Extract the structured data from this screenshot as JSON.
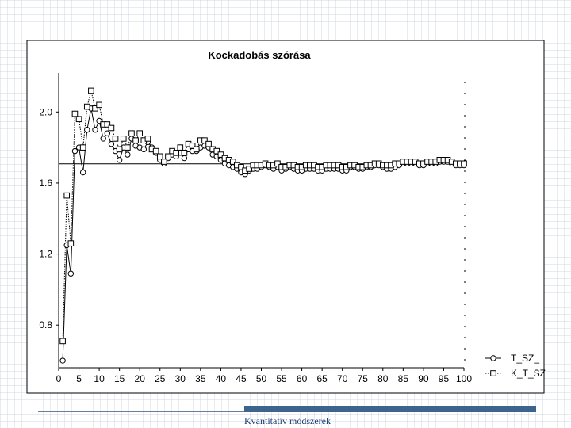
{
  "slide": {
    "footer_text": "Kvantitatív módszerek",
    "accent_color": "#3c648c"
  },
  "chart_data": {
    "type": "line",
    "title": "Kockadobás szórása",
    "xlabel": "",
    "ylabel": "",
    "xlim": [
      0,
      100
    ],
    "ylim": [
      0.56,
      2.22
    ],
    "x_ticks": [
      0,
      5,
      10,
      15,
      20,
      25,
      30,
      35,
      40,
      45,
      50,
      55,
      60,
      65,
      70,
      75,
      80,
      85,
      90,
      95,
      100
    ],
    "y_ticks": [
      0.8,
      1.2,
      1.6,
      2.0
    ],
    "y_tick_labels": [
      "0.8",
      "1.2",
      "1.6",
      "2.0"
    ],
    "reference_line": {
      "y": 1.708
    },
    "legend": {
      "position": "bottom-right",
      "frame": false
    },
    "grid": false,
    "x": [
      1,
      2,
      3,
      4,
      5,
      6,
      7,
      8,
      9,
      10,
      11,
      12,
      13,
      14,
      15,
      16,
      17,
      18,
      19,
      20,
      21,
      22,
      23,
      24,
      25,
      26,
      27,
      28,
      29,
      30,
      31,
      32,
      33,
      34,
      35,
      36,
      37,
      38,
      39,
      40,
      41,
      42,
      43,
      44,
      45,
      46,
      47,
      48,
      49,
      50,
      51,
      52,
      53,
      54,
      55,
      56,
      57,
      58,
      59,
      60,
      61,
      62,
      63,
      64,
      65,
      66,
      67,
      68,
      69,
      70,
      71,
      72,
      73,
      74,
      75,
      76,
      77,
      78,
      79,
      80,
      81,
      82,
      83,
      84,
      85,
      86,
      87,
      88,
      89,
      90,
      91,
      92,
      93,
      94,
      95,
      96,
      97,
      98,
      99,
      100
    ],
    "series": [
      {
        "name": "T_SZ_",
        "marker": "circle",
        "line_style": "solid",
        "values": [
          0.6,
          1.25,
          1.09,
          1.78,
          1.8,
          1.66,
          1.9,
          2.02,
          1.9,
          1.95,
          1.85,
          1.88,
          1.82,
          1.78,
          1.73,
          1.8,
          1.76,
          1.85,
          1.81,
          1.8,
          1.79,
          1.83,
          1.8,
          1.77,
          1.73,
          1.71,
          1.74,
          1.76,
          1.75,
          1.77,
          1.74,
          1.79,
          1.78,
          1.78,
          1.8,
          1.81,
          1.8,
          1.76,
          1.75,
          1.73,
          1.71,
          1.7,
          1.69,
          1.68,
          1.66,
          1.65,
          1.67,
          1.68,
          1.68,
          1.69,
          1.7,
          1.69,
          1.68,
          1.69,
          1.67,
          1.68,
          1.69,
          1.68,
          1.67,
          1.67,
          1.68,
          1.68,
          1.68,
          1.67,
          1.67,
          1.68,
          1.68,
          1.68,
          1.68,
          1.67,
          1.67,
          1.69,
          1.69,
          1.68,
          1.68,
          1.69,
          1.69,
          1.7,
          1.7,
          1.69,
          1.68,
          1.68,
          1.69,
          1.7,
          1.71,
          1.71,
          1.71,
          1.71,
          1.7,
          1.7,
          1.71,
          1.71,
          1.71,
          1.72,
          1.72,
          1.72,
          1.71,
          1.7,
          1.7,
          1.7
        ]
      },
      {
        "name": "K_T_SZ",
        "marker": "square",
        "line_style": "dotted",
        "values": [
          0.71,
          1.53,
          1.26,
          1.99,
          1.96,
          1.8,
          2.03,
          2.12,
          2.02,
          2.04,
          1.93,
          1.93,
          1.91,
          1.85,
          1.79,
          1.85,
          1.8,
          1.88,
          1.84,
          1.88,
          1.84,
          1.85,
          1.79,
          1.78,
          1.75,
          1.72,
          1.75,
          1.78,
          1.77,
          1.8,
          1.77,
          1.82,
          1.81,
          1.79,
          1.84,
          1.84,
          1.82,
          1.79,
          1.78,
          1.76,
          1.74,
          1.73,
          1.72,
          1.7,
          1.69,
          1.67,
          1.68,
          1.7,
          1.7,
          1.7,
          1.71,
          1.7,
          1.7,
          1.71,
          1.69,
          1.69,
          1.7,
          1.7,
          1.69,
          1.69,
          1.7,
          1.7,
          1.7,
          1.69,
          1.69,
          1.7,
          1.7,
          1.7,
          1.7,
          1.69,
          1.69,
          1.7,
          1.7,
          1.69,
          1.69,
          1.7,
          1.7,
          1.71,
          1.71,
          1.7,
          1.7,
          1.7,
          1.71,
          1.71,
          1.72,
          1.72,
          1.72,
          1.72,
          1.71,
          1.71,
          1.72,
          1.72,
          1.72,
          1.73,
          1.73,
          1.73,
          1.72,
          1.71,
          1.71,
          1.71
        ]
      }
    ]
  }
}
